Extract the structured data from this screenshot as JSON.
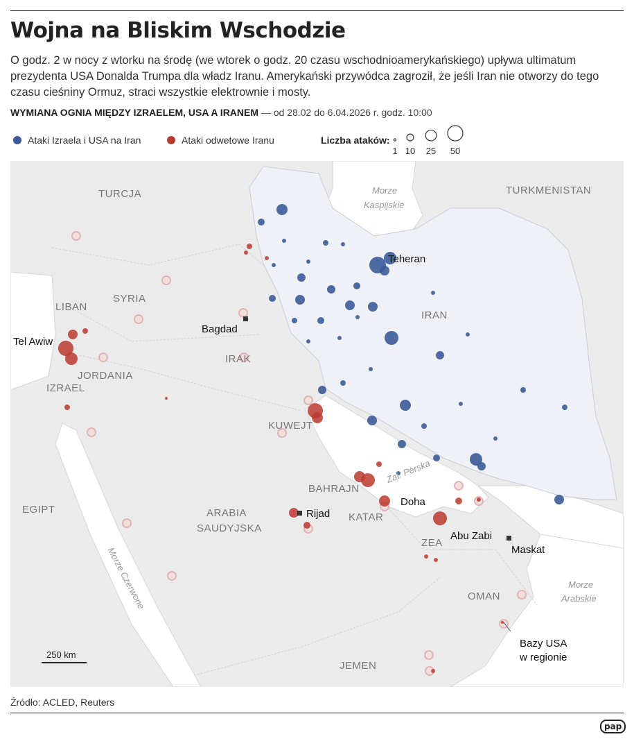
{
  "header": {
    "title": "Wojna na Bliskim Wschodzie",
    "lead": "O godz. 2 w nocy z wtorku na środę (we wtorek o godz. 20 czasu wschodnioamerykańskiego) upływa ultimatum prezydenta USA Donalda Trumpa dla władz Iranu. Amerykański przywódca zagroził, że jeśli Iran nie otworzy do tego czasu cieśniny Ormuz, straci wszystkie elektrownie i mosty.",
    "subtitle": "WYMIANA OGNIA MIĘDZY IZRAELEM, USA A IRANEM",
    "period": "— od 28.02 do 6.04.2026 r. godz. 10:00"
  },
  "legend": {
    "series": [
      {
        "name": "Ataki Izraela i USA na Iran",
        "color": "#3b5b98"
      },
      {
        "name": "Ataki odwetowe Iranu",
        "color": "#bb3a2f"
      }
    ],
    "size_title": "Liczba ataków:",
    "sizes": [
      1,
      10,
      25,
      50
    ]
  },
  "map": {
    "labels": [
      "TURCJA",
      "TURKMENISTAN",
      "Morze",
      "Kaspijskie",
      "Teheran",
      "SYRIA",
      "LIBAN",
      "Tel Awiw",
      "Bagdad",
      "IRAN",
      "IRAK",
      "JORDANIA",
      "IZRAEL",
      "KUWEJT",
      "Zat. Perska",
      "BAHRAJN",
      "Doha",
      "EGIPT",
      "ARABIA",
      "SAUDYJSKA",
      "Rijad",
      "KATAR",
      "Abu Zabi",
      "ZEA",
      "Maskat",
      "Morze",
      "Arabskie",
      "Morze Czerwone",
      "OMAN",
      "Bazy USA",
      "w regionie",
      "JEMEN"
    ],
    "scale": "250 km"
  },
  "footer": {
    "source": "Źródło: ACLED, Reuters",
    "logo": "pap"
  }
}
